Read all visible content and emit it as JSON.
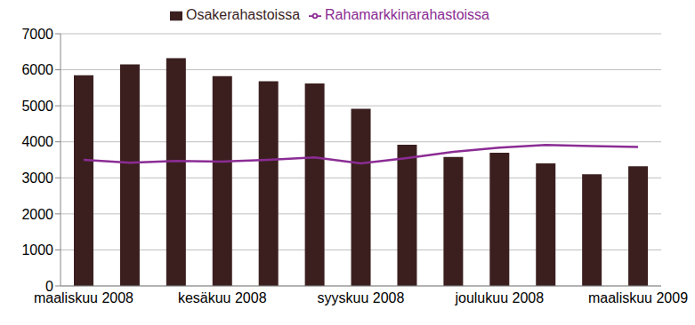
{
  "chart_data": {
    "type": "bar",
    "categories": [
      "maaliskuu 2008",
      null,
      null,
      "kesäkuu 2008",
      null,
      null,
      "syyskuu 2008",
      null,
      null,
      "joulukuu 2008",
      null,
      null,
      "maaliskuu 2009"
    ],
    "series": [
      {
        "name": "Osakerahastoissa",
        "type": "bar",
        "color": "#3b1f1f",
        "values": [
          5850,
          6150,
          6320,
          5820,
          5680,
          5620,
          4920,
          3920,
          3580,
          3700,
          3400,
          3100,
          3320
        ]
      },
      {
        "name": "Rahamarkkinarahastoissa",
        "type": "line",
        "color": "#8b2c94",
        "values": [
          3500,
          3420,
          3470,
          3450,
          3500,
          3570,
          3400,
          3550,
          3720,
          3840,
          3910,
          3880,
          3860
        ]
      }
    ],
    "ylim": [
      0,
      7000
    ],
    "yticks": [
      0,
      1000,
      2000,
      3000,
      4000,
      5000,
      6000,
      7000
    ],
    "grid": true,
    "legend": "top"
  }
}
